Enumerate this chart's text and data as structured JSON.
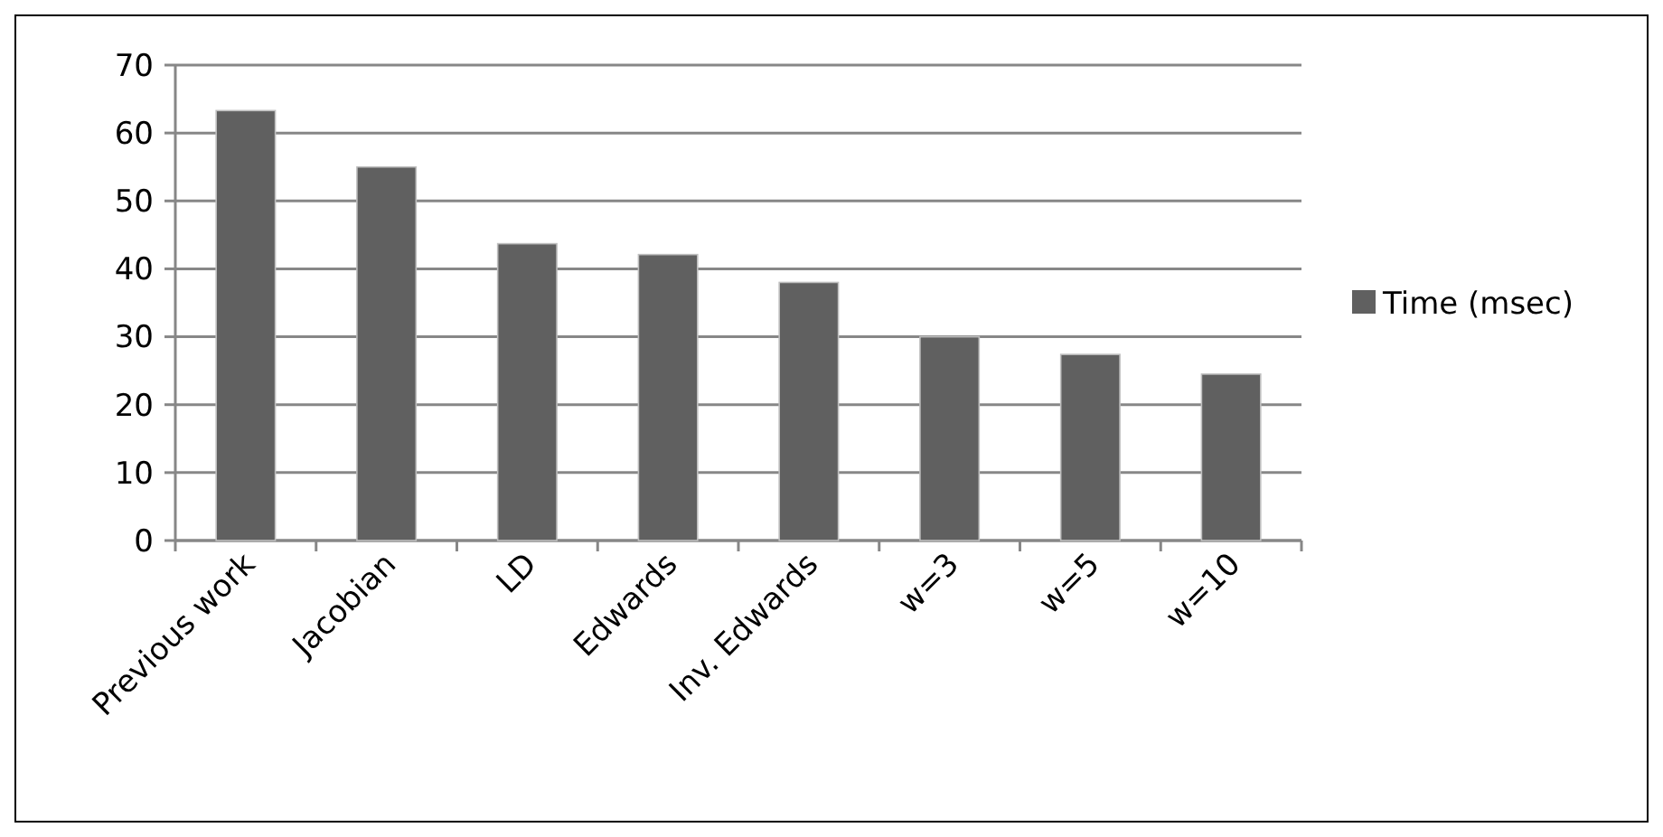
{
  "chart_data": {
    "type": "bar",
    "categories": [
      "Previous work",
      "Jacobian",
      "LD",
      "Edwards",
      "Inv. Edwards",
      "w=3",
      "w=5",
      "w=10"
    ],
    "series": [
      {
        "name": "Time (msec)",
        "color": "#606060",
        "values": [
          63.3,
          55,
          43.7,
          42.1,
          38,
          30,
          27.4,
          24.5
        ]
      }
    ],
    "ylim": [
      0,
      70
    ],
    "yticks": [
      0,
      10,
      20,
      30,
      40,
      50,
      60,
      70
    ],
    "grid": "y",
    "legend": "right"
  }
}
